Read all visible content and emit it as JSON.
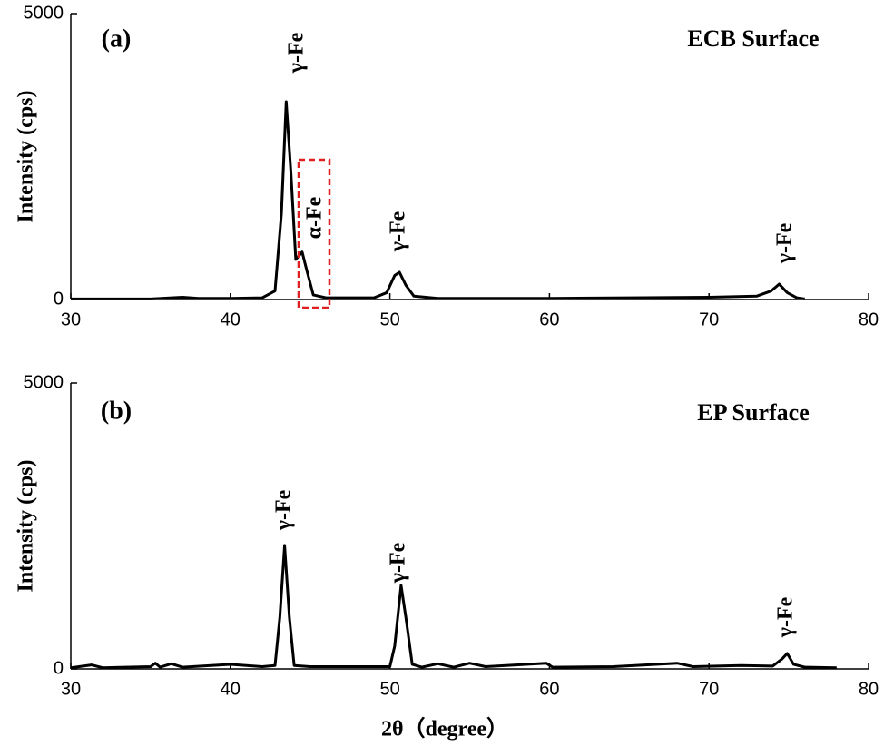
{
  "chart_data": [
    {
      "type": "line",
      "panel_label": "(a)",
      "sample": "ECB Surface",
      "ylabel": "Intensity (cps)",
      "color": "#000000",
      "x": [
        30,
        35,
        37,
        38,
        40,
        42,
        42.8,
        43.2,
        43.5,
        43.8,
        44.1,
        44.5,
        44.8,
        45.2,
        46,
        49,
        49.8,
        50.3,
        50.6,
        51,
        51.5,
        53,
        60,
        65,
        70,
        73,
        73.9,
        74.4,
        74.9,
        75.5,
        76
      ],
      "values": [
        10,
        10,
        40,
        20,
        20,
        30,
        150,
        1500,
        3460,
        2200,
        700,
        830,
        500,
        80,
        30,
        30,
        120,
        420,
        476,
        250,
        60,
        20,
        20,
        30,
        40,
        60,
        150,
        270,
        120,
        30,
        10
      ],
      "annotations": [
        "γ-Fe",
        "α-Fe",
        "γ-Fe",
        "γ-Fe"
      ],
      "xlim": [
        30,
        80
      ],
      "xticks": [
        30,
        40,
        50,
        60,
        70,
        80
      ],
      "ylim": [
        0,
        5000
      ],
      "yticks": [
        0,
        5000
      ]
    },
    {
      "type": "line",
      "panel_label": "(b)",
      "sample": "EP Surface",
      "ylabel": "Intensity (cps)",
      "xlabel": "2θ（degree）",
      "color": "#000000",
      "x": [
        30,
        31.3,
        32,
        35,
        35.3,
        35.6,
        36.3,
        37,
        40,
        42,
        42.8,
        43.1,
        43.4,
        43.7,
        44,
        45,
        46,
        50,
        50.3,
        50.7,
        51,
        51.4,
        52,
        53,
        54,
        55,
        56,
        59.8,
        60.2,
        64,
        68,
        69,
        72,
        74,
        74.6,
        74.9,
        75.3,
        76,
        78
      ],
      "values": [
        20,
        70,
        20,
        40,
        100,
        30,
        90,
        30,
        80,
        40,
        60,
        900,
        2160,
        900,
        60,
        40,
        40,
        40,
        400,
        1460,
        900,
        80,
        30,
        90,
        30,
        100,
        40,
        100,
        30,
        40,
        100,
        40,
        60,
        50,
        180,
        270,
        80,
        30,
        20
      ],
      "annotations": [
        "γ-Fe",
        "γ-Fe",
        "γ-Fe"
      ],
      "xlim": [
        30,
        80
      ],
      "xticks": [
        30,
        40,
        50,
        60,
        70,
        80
      ],
      "ylim": [
        0,
        5000
      ],
      "yticks": [
        0,
        5000
      ]
    }
  ]
}
